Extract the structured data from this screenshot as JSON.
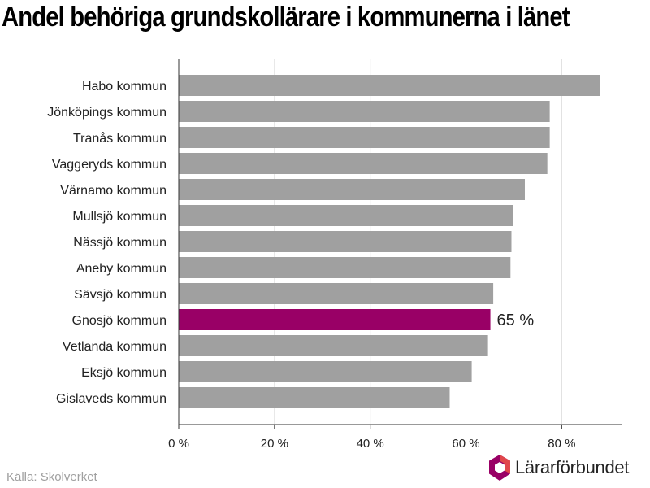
{
  "title": "Andel behöriga grundskollärare i kommunerna i länet",
  "source": "Källa: Skolverket",
  "logo": {
    "text": "Lärarförbundet",
    "name": "larar-forbundet-logo"
  },
  "colors": {
    "bar": "#a0a0a0",
    "highlight": "#990066",
    "grid": "#dddddd",
    "axis": "#333333",
    "text": "#222222",
    "source": "#a0a0a0",
    "logo_primary": "#990066",
    "logo_secondary": "#e0464b"
  },
  "chart_data": {
    "type": "bar",
    "orientation": "horizontal",
    "categories": [
      "Habo kommun",
      "Jönköpings kommun",
      "Tranås kommun",
      "Vaggeryds kommun",
      "Värnamo kommun",
      "Mullsjö kommun",
      "Nässjö kommun",
      "Aneby kommun",
      "Sävsjö kommun",
      "Gnosjö kommun",
      "Vetlanda kommun",
      "Eksjö kommun",
      "Gislaveds kommun"
    ],
    "values": [
      88,
      77.5,
      77.5,
      77,
      72.3,
      69.8,
      69.5,
      69.3,
      65.7,
      65.1,
      64.6,
      61.2,
      56.6
    ],
    "highlight_category": "Gnosjö kommun",
    "highlight_label": "65 %",
    "xlim": [
      0,
      92.5
    ],
    "xticks": [
      0,
      20,
      40,
      60,
      80
    ],
    "xtick_labels": [
      "0 %",
      "20 %",
      "40 %",
      "60 %",
      "80 %"
    ],
    "grid": true,
    "title": "Andel behöriga grundskollärare i kommunerna i länet"
  }
}
